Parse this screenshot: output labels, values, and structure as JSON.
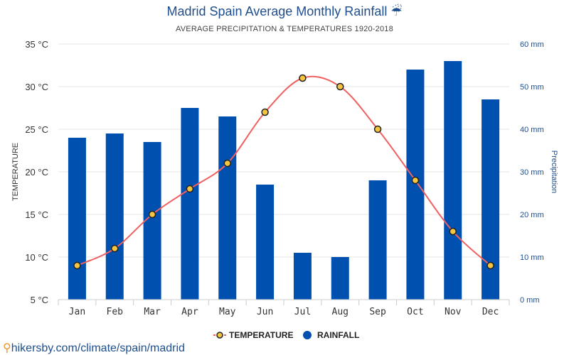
{
  "header": {
    "title": "Madrid Spain Average Monthly Rainfall",
    "title_icon": "umbrella-rain-icon",
    "subtitle": "AVERAGE PRECIPITATION & TEMPERATURES 1920-2018"
  },
  "source": {
    "text": "hikersby.com/climate/spain/madrid",
    "icon": "location-pin-icon"
  },
  "colors": {
    "bar": "#0050b0",
    "line": "#f06060",
    "marker_fill": "#f5c542",
    "marker_stroke": "#222222",
    "title": "#1f4e8c"
  },
  "chart_data": {
    "type": "bar+line",
    "categories": [
      "Jan",
      "Feb",
      "Mar",
      "Apr",
      "May",
      "Jun",
      "Jul",
      "Aug",
      "Sep",
      "Oct",
      "Nov",
      "Dec"
    ],
    "series": [
      {
        "name": "TEMPERATURE",
        "type": "line",
        "axis": "left",
        "values": [
          9,
          11,
          15,
          18,
          21,
          27,
          31,
          30,
          25,
          19,
          13,
          9
        ]
      },
      {
        "name": "RAINFALL",
        "type": "bar",
        "axis": "right",
        "values": [
          38,
          39,
          37,
          45,
          43,
          27,
          11,
          10,
          28,
          54,
          56,
          47
        ]
      }
    ],
    "y_left": {
      "label": "TEMPERATURE",
      "range": [
        5,
        35
      ],
      "ticks": [
        "5 °C",
        "10 °C",
        "15 °C",
        "20 °C",
        "25 °C",
        "30 °C",
        "35 °C"
      ]
    },
    "y_right": {
      "label": "Precipitation",
      "range": [
        0,
        60
      ],
      "ticks": [
        "0 mm",
        "10 mm",
        "20 mm",
        "30 mm",
        "40 mm",
        "50 mm",
        "60 mm"
      ]
    },
    "legend": [
      "TEMPERATURE",
      "RAINFALL"
    ],
    "legend_position": "bottom-center",
    "grid": true
  }
}
